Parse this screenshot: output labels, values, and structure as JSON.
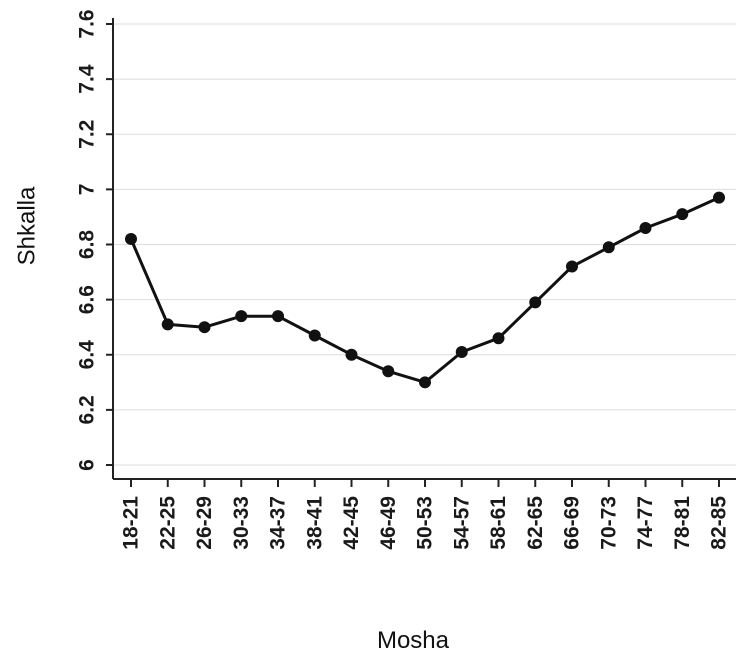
{
  "chart_data": {
    "type": "line",
    "title": "",
    "xlabel": "Mosha",
    "ylabel": "Shkalla",
    "categories": [
      "18-21",
      "22-25",
      "26-29",
      "30-33",
      "34-37",
      "38-41",
      "42-45",
      "46-49",
      "50-53",
      "54-57",
      "58-61",
      "62-65",
      "66-69",
      "70-73",
      "74-77",
      "78-81",
      "82-85"
    ],
    "series": [
      {
        "values": [
          6.82,
          6.51,
          6.5,
          6.54,
          6.54,
          6.47,
          6.4,
          6.34,
          6.3,
          6.41,
          6.46,
          6.59,
          6.72,
          6.79,
          6.86,
          6.91,
          6.97
        ]
      }
    ],
    "ylim": [
      6,
      7.6
    ],
    "yticks": [
      6,
      6.2,
      6.4,
      6.6,
      6.8,
      7,
      7.2,
      7.4,
      7.6
    ],
    "grid": true,
    "legend": "none",
    "colors": {
      "line": "#111111",
      "marker": "#111111",
      "grid": "#dddddd",
      "axis": "#222222"
    }
  }
}
